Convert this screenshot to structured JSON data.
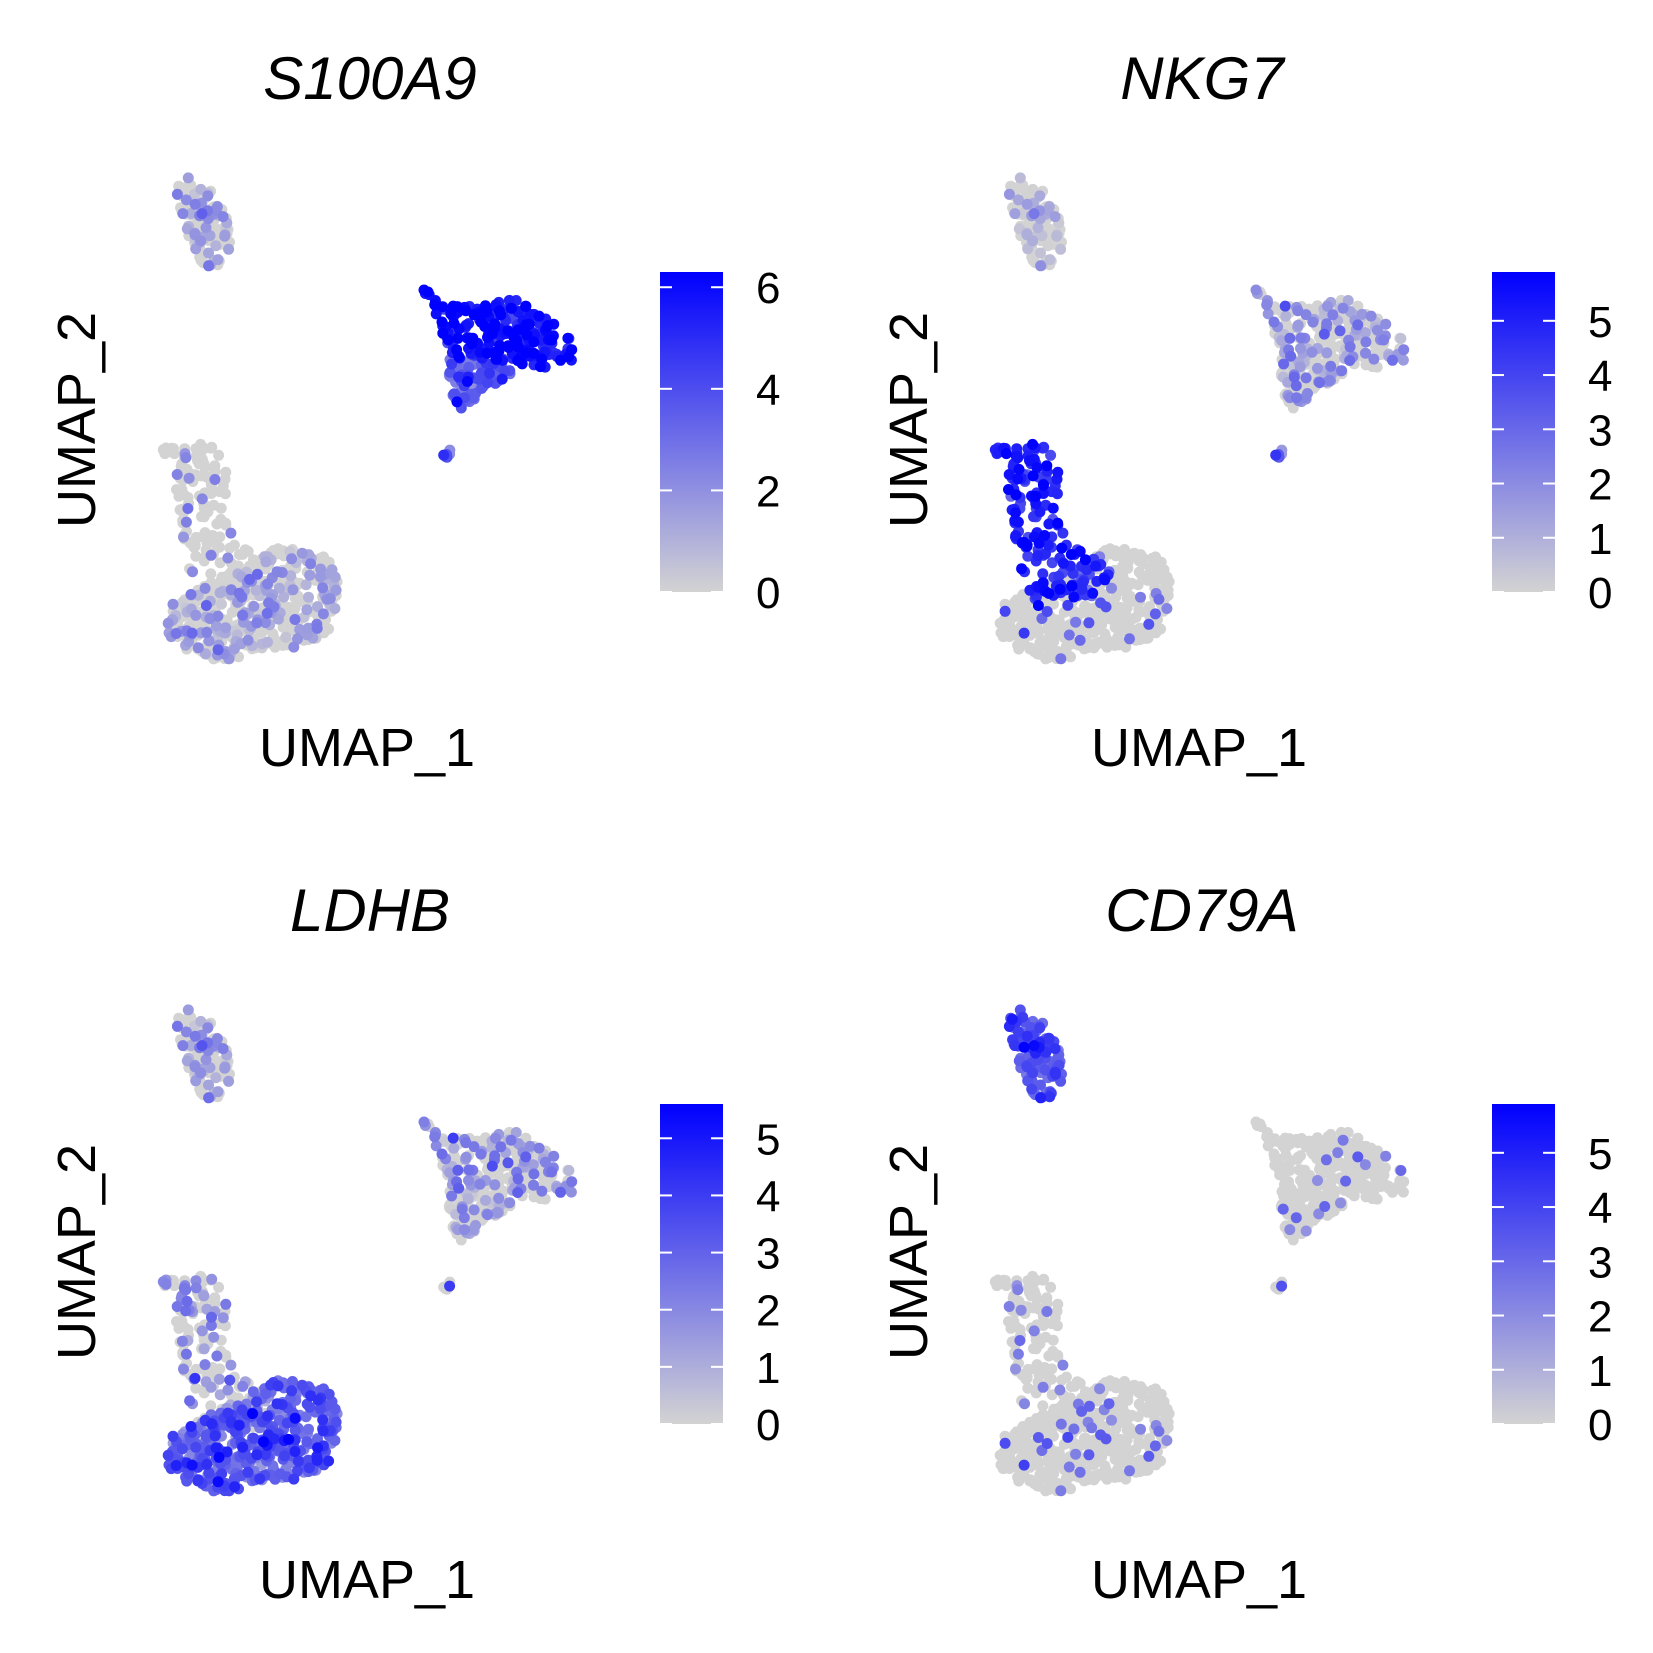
{
  "figure": {
    "type": "umap feature plots",
    "colors": {
      "low": "#d3d3d3",
      "high": "#0000ff",
      "background": "#ffffff"
    }
  },
  "chart_data": [
    {
      "type": "scatter",
      "title": "S100A9",
      "xlabel": "UMAP_1",
      "ylabel": "UMAP_2",
      "grid": false,
      "axes_visible": false,
      "legend": {
        "type": "colorbar",
        "placement": "right",
        "min": 0,
        "max": 6.3,
        "ticks": [
          0,
          2,
          4,
          6
        ]
      },
      "cluster_expression": {
        "B_cluster": 1.6,
        "main_upper": 0.3,
        "main_lower": 1.3,
        "myeloid_top": 5.6,
        "myeloid_lower": 3.2,
        "small_cluster": 4.0
      }
    },
    {
      "type": "scatter",
      "title": "NKG7",
      "xlabel": "UMAP_1",
      "ylabel": "UMAP_2",
      "grid": false,
      "axes_visible": false,
      "legend": {
        "type": "colorbar",
        "placement": "right",
        "min": 0,
        "max": 5.9,
        "ticks": [
          0,
          1,
          2,
          3,
          4,
          5
        ]
      },
      "cluster_expression": {
        "B_cluster": 0.7,
        "main_upper": 4.9,
        "main_lower": 0.5,
        "myeloid_top": 1.5,
        "myeloid_lower": 1.8,
        "small_cluster": 3.5
      }
    },
    {
      "type": "scatter",
      "title": "LDHB",
      "xlabel": "UMAP_1",
      "ylabel": "UMAP_2",
      "grid": false,
      "axes_visible": false,
      "legend": {
        "type": "colorbar",
        "placement": "right",
        "min": 0,
        "max": 5.6,
        "ticks": [
          0,
          1,
          2,
          3,
          4,
          5
        ]
      },
      "cluster_expression": {
        "B_cluster": 1.5,
        "main_upper": 2.0,
        "main_lower": 3.1,
        "myeloid_top": 1.7,
        "myeloid_lower": 1.2,
        "small_cluster": 0.4
      }
    },
    {
      "type": "scatter",
      "title": "CD79A",
      "xlabel": "UMAP_1",
      "ylabel": "UMAP_2",
      "grid": false,
      "axes_visible": false,
      "legend": {
        "type": "colorbar",
        "placement": "right",
        "min": 0,
        "max": 5.9,
        "ticks": [
          0,
          1,
          2,
          3,
          4,
          5
        ]
      },
      "cluster_expression": {
        "B_cluster": 3.6,
        "main_upper": 0.3,
        "main_lower": 0.3,
        "myeloid_top": 0.2,
        "myeloid_lower": 0.2,
        "small_cluster": 0.0
      }
    }
  ]
}
